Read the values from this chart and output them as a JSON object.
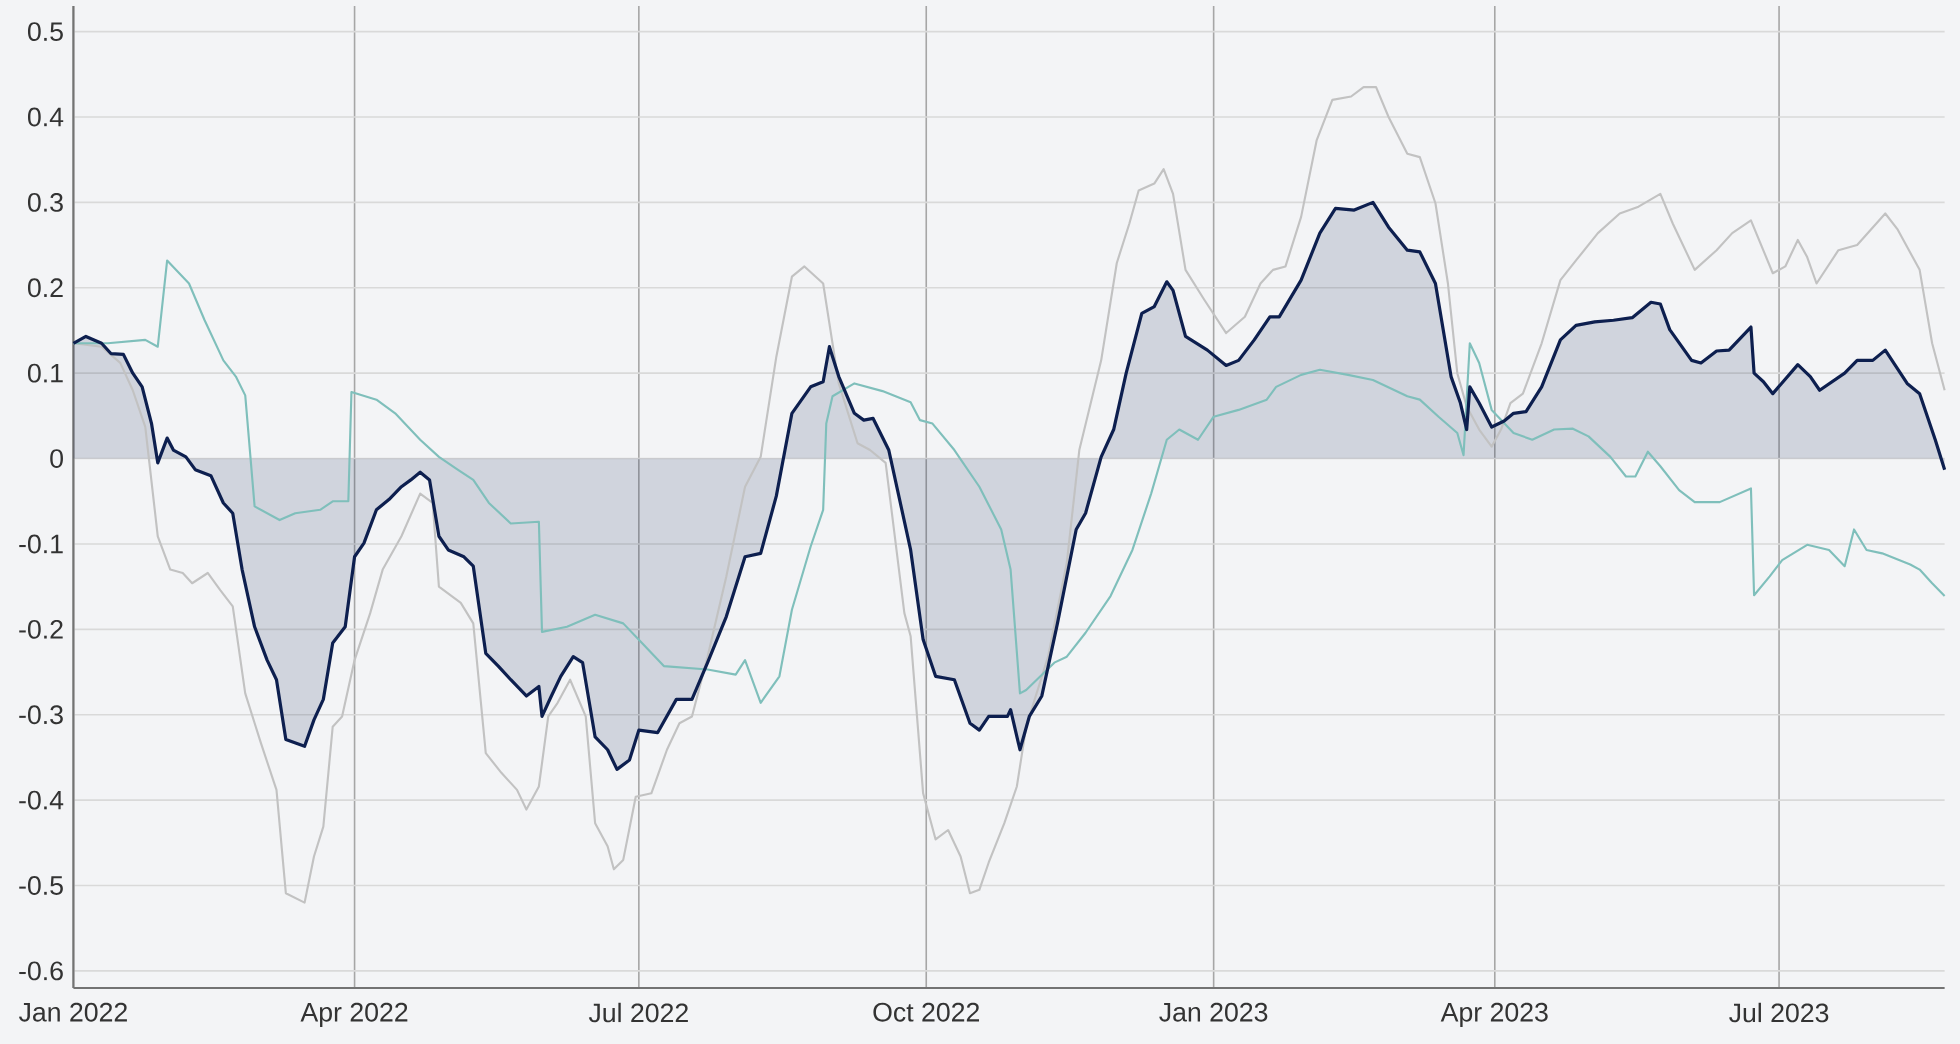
{
  "chart_data": {
    "type": "line",
    "xlim": [
      "2022-01-01",
      "2023-08-23"
    ],
    "xticks": [
      {
        "value": "2022-01-01",
        "label": "Jan 2022"
      },
      {
        "value": "2022-04-01",
        "label": "Apr 2022"
      },
      {
        "value": "2022-07-01",
        "label": "Jul 2022"
      },
      {
        "value": "2022-10-01",
        "label": "Oct 2022"
      },
      {
        "value": "2023-01-01",
        "label": "Jan 2023"
      },
      {
        "value": "2023-04-01",
        "label": "Apr 2023"
      },
      {
        "value": "2023-07-01",
        "label": "Jul 2023"
      }
    ],
    "ylim": [
      -0.62,
      0.53
    ],
    "yticks": [
      -0.6,
      -0.5,
      -0.4,
      -0.3,
      -0.2,
      -0.1,
      0,
      0.1,
      0.2,
      0.3,
      0.4,
      0.5
    ],
    "grid": true,
    "series": [
      {
        "type": "area",
        "color": "#0d1f4f",
        "x": [
          "2022-01-01",
          "2022-01-05",
          "2022-01-10",
          "2022-01-13",
          "2022-01-17",
          "2022-01-20",
          "2022-01-23",
          "2022-01-26",
          "2022-01-28",
          "2022-01-31",
          "2022-02-02",
          "2022-02-06",
          "2022-02-09",
          "2022-02-14",
          "2022-02-18",
          "2022-02-21",
          "2022-02-24",
          "2022-02-28",
          "2022-03-04",
          "2022-03-07",
          "2022-03-10",
          "2022-03-16",
          "2022-03-19",
          "2022-03-22",
          "2022-03-25",
          "2022-03-29",
          "2022-04-01",
          "2022-04-04",
          "2022-04-08",
          "2022-04-12",
          "2022-04-16",
          "2022-04-19",
          "2022-04-22",
          "2022-04-25",
          "2022-04-28",
          "2022-05-01",
          "2022-05-06",
          "2022-05-09",
          "2022-05-13",
          "2022-05-17",
          "2022-05-21",
          "2022-05-26",
          "2022-05-30",
          "2022-05-31",
          "2022-06-03",
          "2022-06-06",
          "2022-06-10",
          "2022-06-13",
          "2022-06-17",
          "2022-06-21",
          "2022-06-24",
          "2022-06-28",
          "2022-07-01",
          "2022-07-07",
          "2022-07-13",
          "2022-07-18",
          "2022-07-23",
          "2022-07-29",
          "2022-08-04",
          "2022-08-09",
          "2022-08-14",
          "2022-08-19",
          "2022-08-25",
          "2022-08-29",
          "2022-08-31",
          "2022-09-03",
          "2022-09-08",
          "2022-09-11",
          "2022-09-14",
          "2022-09-19",
          "2022-09-26",
          "2022-09-30",
          "2022-10-04",
          "2022-10-10",
          "2022-10-15",
          "2022-10-18",
          "2022-10-21",
          "2022-10-27",
          "2022-10-28",
          "2022-10-31",
          "2022-11-03",
          "2022-11-07",
          "2022-11-12",
          "2022-11-18",
          "2022-11-21",
          "2022-11-26",
          "2022-11-30",
          "2022-12-04",
          "2022-12-09",
          "2022-12-13",
          "2022-12-17",
          "2022-12-19",
          "2022-12-23",
          "2022-12-30",
          "2023-01-05",
          "2023-01-09",
          "2023-01-14",
          "2023-01-19",
          "2023-01-22",
          "2023-01-29",
          "2023-02-04",
          "2023-02-09",
          "2023-02-15",
          "2023-02-21",
          "2023-02-26",
          "2023-03-04",
          "2023-03-08",
          "2023-03-13",
          "2023-03-18",
          "2023-03-21",
          "2023-03-23",
          "2023-03-24",
          "2023-03-27",
          "2023-03-31",
          "2023-04-04",
          "2023-04-07",
          "2023-04-11",
          "2023-04-16",
          "2023-04-22",
          "2023-04-27",
          "2023-05-03",
          "2023-05-09",
          "2023-05-15",
          "2023-05-21",
          "2023-05-24",
          "2023-05-27",
          "2023-06-03",
          "2023-06-06",
          "2023-06-11",
          "2023-06-15",
          "2023-06-22",
          "2023-06-23",
          "2023-06-26",
          "2023-06-29",
          "2023-07-07",
          "2023-07-11",
          "2023-07-14",
          "2023-07-22",
          "2023-07-26",
          "2023-07-31",
          "2023-08-04",
          "2023-08-11",
          "2023-08-15",
          "2023-08-20",
          "2023-08-23"
        ],
        "values": [
          0.135,
          0.143,
          0.135,
          0.123,
          0.122,
          0.1,
          0.084,
          0.041,
          -0.005,
          0.024,
          0.01,
          0.002,
          -0.013,
          -0.02,
          -0.052,
          -0.064,
          -0.13,
          -0.197,
          -0.236,
          -0.259,
          -0.329,
          -0.337,
          -0.306,
          -0.282,
          -0.216,
          -0.197,
          -0.115,
          -0.099,
          -0.06,
          -0.048,
          -0.033,
          -0.025,
          -0.016,
          -0.025,
          -0.091,
          -0.107,
          -0.115,
          -0.126,
          -0.228,
          -0.243,
          -0.259,
          -0.278,
          -0.267,
          -0.302,
          -0.278,
          -0.255,
          -0.232,
          -0.239,
          -0.326,
          -0.341,
          -0.364,
          -0.353,
          -0.318,
          -0.321,
          -0.282,
          -0.282,
          -0.239,
          -0.185,
          -0.115,
          -0.111,
          -0.044,
          0.053,
          0.084,
          0.09,
          0.131,
          0.096,
          0.053,
          0.045,
          0.047,
          0.01,
          -0.107,
          -0.212,
          -0.255,
          -0.259,
          -0.31,
          -0.318,
          -0.302,
          -0.302,
          -0.294,
          -0.341,
          -0.302,
          -0.278,
          -0.193,
          -0.083,
          -0.064,
          0.002,
          0.034,
          0.1,
          0.17,
          0.178,
          0.207,
          0.197,
          0.143,
          0.127,
          0.109,
          0.115,
          0.139,
          0.166,
          0.166,
          0.209,
          0.264,
          0.293,
          0.291,
          0.3,
          0.271,
          0.244,
          0.242,
          0.205,
          0.096,
          0.065,
          0.034,
          0.084,
          0.065,
          0.037,
          0.044,
          0.053,
          0.055,
          0.084,
          0.139,
          0.156,
          0.16,
          0.162,
          0.165,
          0.183,
          0.181,
          0.151,
          0.115,
          0.112,
          0.126,
          0.127,
          0.154,
          0.1,
          0.09,
          0.076,
          0.11,
          0.096,
          0.08,
          0.1,
          0.115,
          0.115,
          0.127,
          0.088,
          0.076,
          0.022,
          -0.013
        ]
      },
      {
        "color": "#7fbfbb",
        "x": [
          "2022-01-01",
          "2022-01-12",
          "2022-01-24",
          "2022-01-28",
          "2022-01-31",
          "2022-02-07",
          "2022-02-12",
          "2022-02-18",
          "2022-02-22",
          "2022-02-25",
          "2022-02-28",
          "2022-03-08",
          "2022-03-13",
          "2022-03-21",
          "2022-03-25",
          "2022-03-30",
          "2022-03-31",
          "2022-04-08",
          "2022-04-14",
          "2022-04-22",
          "2022-04-28",
          "2022-05-04",
          "2022-05-09",
          "2022-05-14",
          "2022-05-21",
          "2022-05-30",
          "2022-05-31",
          "2022-06-08",
          "2022-06-17",
          "2022-06-26",
          "2022-07-02",
          "2022-07-09",
          "2022-07-23",
          "2022-08-01",
          "2022-08-04",
          "2022-08-09",
          "2022-08-15",
          "2022-08-19",
          "2022-08-25",
          "2022-08-29",
          "2022-08-30",
          "2022-09-01",
          "2022-09-08",
          "2022-09-17",
          "2022-09-26",
          "2022-09-29",
          "2022-10-03",
          "2022-10-10",
          "2022-10-18",
          "2022-10-25",
          "2022-10-28",
          "2022-10-31",
          "2022-11-02",
          "2022-11-11",
          "2022-11-15",
          "2022-11-21",
          "2022-11-29",
          "2022-12-06",
          "2022-12-12",
          "2022-12-17",
          "2022-12-21",
          "2022-12-27",
          "2023-01-01",
          "2023-01-09",
          "2023-01-18",
          "2023-01-21",
          "2023-01-29",
          "2023-02-04",
          "2023-02-13",
          "2023-02-21",
          "2023-03-04",
          "2023-03-08",
          "2023-03-14",
          "2023-03-20",
          "2023-03-22",
          "2023-03-24",
          "2023-03-27",
          "2023-03-31",
          "2023-04-07",
          "2023-04-13",
          "2023-04-20",
          "2023-04-26",
          "2023-05-01",
          "2023-05-08",
          "2023-05-13",
          "2023-05-16",
          "2023-05-20",
          "2023-05-24",
          "2023-05-30",
          "2023-06-04",
          "2023-06-12",
          "2023-06-22",
          "2023-06-23",
          "2023-06-28",
          "2023-07-02",
          "2023-07-10",
          "2023-07-17",
          "2023-07-22",
          "2023-07-25",
          "2023-07-29",
          "2023-08-03",
          "2023-08-12",
          "2023-08-15",
          "2023-08-19",
          "2023-08-23"
        ],
        "values": [
          0.135,
          0.135,
          0.139,
          0.131,
          0.232,
          0.205,
          0.162,
          0.115,
          0.096,
          0.074,
          -0.056,
          -0.072,
          -0.064,
          -0.06,
          -0.05,
          -0.05,
          0.078,
          0.069,
          0.053,
          0.022,
          0.002,
          -0.013,
          -0.025,
          -0.052,
          -0.076,
          -0.074,
          -0.203,
          -0.197,
          -0.183,
          -0.193,
          -0.216,
          -0.243,
          -0.247,
          -0.253,
          -0.236,
          -0.286,
          -0.255,
          -0.177,
          -0.103,
          -0.06,
          0.041,
          0.073,
          0.088,
          0.079,
          0.066,
          0.045,
          0.041,
          0.01,
          -0.033,
          -0.083,
          -0.13,
          -0.275,
          -0.271,
          -0.239,
          -0.232,
          -0.204,
          -0.161,
          -0.107,
          -0.041,
          0.022,
          0.034,
          0.022,
          0.049,
          0.057,
          0.069,
          0.084,
          0.098,
          0.104,
          0.098,
          0.092,
          0.073,
          0.069,
          0.049,
          0.03,
          0.004,
          0.135,
          0.112,
          0.057,
          0.03,
          0.022,
          0.034,
          0.035,
          0.026,
          0.002,
          -0.021,
          -0.021,
          0.008,
          -0.009,
          -0.037,
          -0.051,
          -0.051,
          -0.035,
          -0.16,
          -0.138,
          -0.119,
          -0.101,
          -0.107,
          -0.126,
          -0.083,
          -0.107,
          -0.111,
          -0.124,
          -0.13,
          -0.146,
          -0.161
        ]
      },
      {
        "color": "#c2c2c2",
        "x": [
          "2022-01-01",
          "2022-01-10",
          "2022-01-16",
          "2022-01-20",
          "2022-01-24",
          "2022-01-28",
          "2022-02-01",
          "2022-02-05",
          "2022-02-08",
          "2022-02-13",
          "2022-02-17",
          "2022-02-21",
          "2022-02-25",
          "2022-03-02",
          "2022-03-07",
          "2022-03-10",
          "2022-03-16",
          "2022-03-19",
          "2022-03-22",
          "2022-03-25",
          "2022-03-28",
          "2022-04-01",
          "2022-04-06",
          "2022-04-10",
          "2022-04-16",
          "2022-04-22",
          "2022-04-26",
          "2022-04-28",
          "2022-05-05",
          "2022-05-09",
          "2022-05-13",
          "2022-05-18",
          "2022-05-23",
          "2022-05-26",
          "2022-05-30",
          "2022-06-02",
          "2022-06-05",
          "2022-06-09",
          "2022-06-14",
          "2022-06-17",
          "2022-06-21",
          "2022-06-23",
          "2022-06-26",
          "2022-06-30",
          "2022-07-05",
          "2022-07-10",
          "2022-07-14",
          "2022-07-18",
          "2022-07-23",
          "2022-07-29",
          "2022-08-04",
          "2022-08-09",
          "2022-08-14",
          "2022-08-19",
          "2022-08-23",
          "2022-08-29",
          "2022-09-03",
          "2022-09-09",
          "2022-09-13",
          "2022-09-18",
          "2022-09-24",
          "2022-09-26",
          "2022-09-30",
          "2022-10-04",
          "2022-10-08",
          "2022-10-12",
          "2022-10-15",
          "2022-10-18",
          "2022-10-21",
          "2022-10-26",
          "2022-10-30",
          "2022-11-02",
          "2022-11-09",
          "2022-11-15",
          "2022-11-19",
          "2022-11-26",
          "2022-12-01",
          "2022-12-05",
          "2022-12-08",
          "2022-12-13",
          "2022-12-16",
          "2022-12-19",
          "2022-12-23",
          "2022-12-29",
          "2023-01-05",
          "2023-01-11",
          "2023-01-16",
          "2023-01-20",
          "2023-01-24",
          "2023-01-29",
          "2023-02-03",
          "2023-02-08",
          "2023-02-14",
          "2023-02-18",
          "2023-02-22",
          "2023-02-26",
          "2023-03-04",
          "2023-03-08",
          "2023-03-13",
          "2023-03-17",
          "2023-03-20",
          "2023-03-23",
          "2023-03-27",
          "2023-03-31",
          "2023-04-03",
          "2023-04-06",
          "2023-04-10",
          "2023-04-16",
          "2023-04-22",
          "2023-04-27",
          "2023-05-04",
          "2023-05-11",
          "2023-05-17",
          "2023-05-24",
          "2023-05-28",
          "2023-06-04",
          "2023-06-11",
          "2023-06-16",
          "2023-06-22",
          "2023-06-29",
          "2023-07-03",
          "2023-07-07",
          "2023-07-10",
          "2023-07-13",
          "2023-07-20",
          "2023-07-26",
          "2023-08-04",
          "2023-08-08",
          "2023-08-15",
          "2023-08-19",
          "2023-08-23"
        ],
        "values": [
          0.135,
          0.131,
          0.112,
          0.08,
          0.037,
          -0.091,
          -0.13,
          -0.134,
          -0.146,
          -0.134,
          -0.154,
          -0.173,
          -0.275,
          -0.333,
          -0.388,
          -0.509,
          -0.52,
          -0.466,
          -0.431,
          -0.314,
          -0.302,
          -0.236,
          -0.181,
          -0.13,
          -0.091,
          -0.041,
          -0.052,
          -0.15,
          -0.169,
          -0.193,
          -0.345,
          -0.368,
          -0.388,
          -0.411,
          -0.384,
          -0.302,
          -0.286,
          -0.259,
          -0.302,
          -0.427,
          -0.454,
          -0.481,
          -0.47,
          -0.396,
          -0.392,
          -0.341,
          -0.31,
          -0.302,
          -0.232,
          -0.138,
          -0.033,
          0.002,
          0.119,
          0.213,
          0.225,
          0.205,
          0.088,
          0.018,
          0.01,
          -0.005,
          -0.181,
          -0.208,
          -0.392,
          -0.446,
          -0.435,
          -0.466,
          -0.509,
          -0.505,
          -0.473,
          -0.427,
          -0.384,
          -0.314,
          -0.232,
          -0.122,
          0.01,
          0.115,
          0.229,
          0.275,
          0.314,
          0.322,
          0.339,
          0.31,
          0.221,
          0.186,
          0.147,
          0.166,
          0.205,
          0.221,
          0.225,
          0.283,
          0.373,
          0.42,
          0.424,
          0.435,
          0.435,
          0.4,
          0.357,
          0.353,
          0.299,
          0.205,
          0.1,
          0.061,
          0.034,
          0.014,
          0.034,
          0.065,
          0.076,
          0.135,
          0.209,
          0.232,
          0.264,
          0.287,
          0.295,
          0.31,
          0.275,
          0.221,
          0.244,
          0.264,
          0.279,
          0.217,
          0.225,
          0.256,
          0.236,
          0.205,
          0.244,
          0.25,
          0.287,
          0.268,
          0.221,
          0.135,
          0.08
        ]
      }
    ]
  }
}
